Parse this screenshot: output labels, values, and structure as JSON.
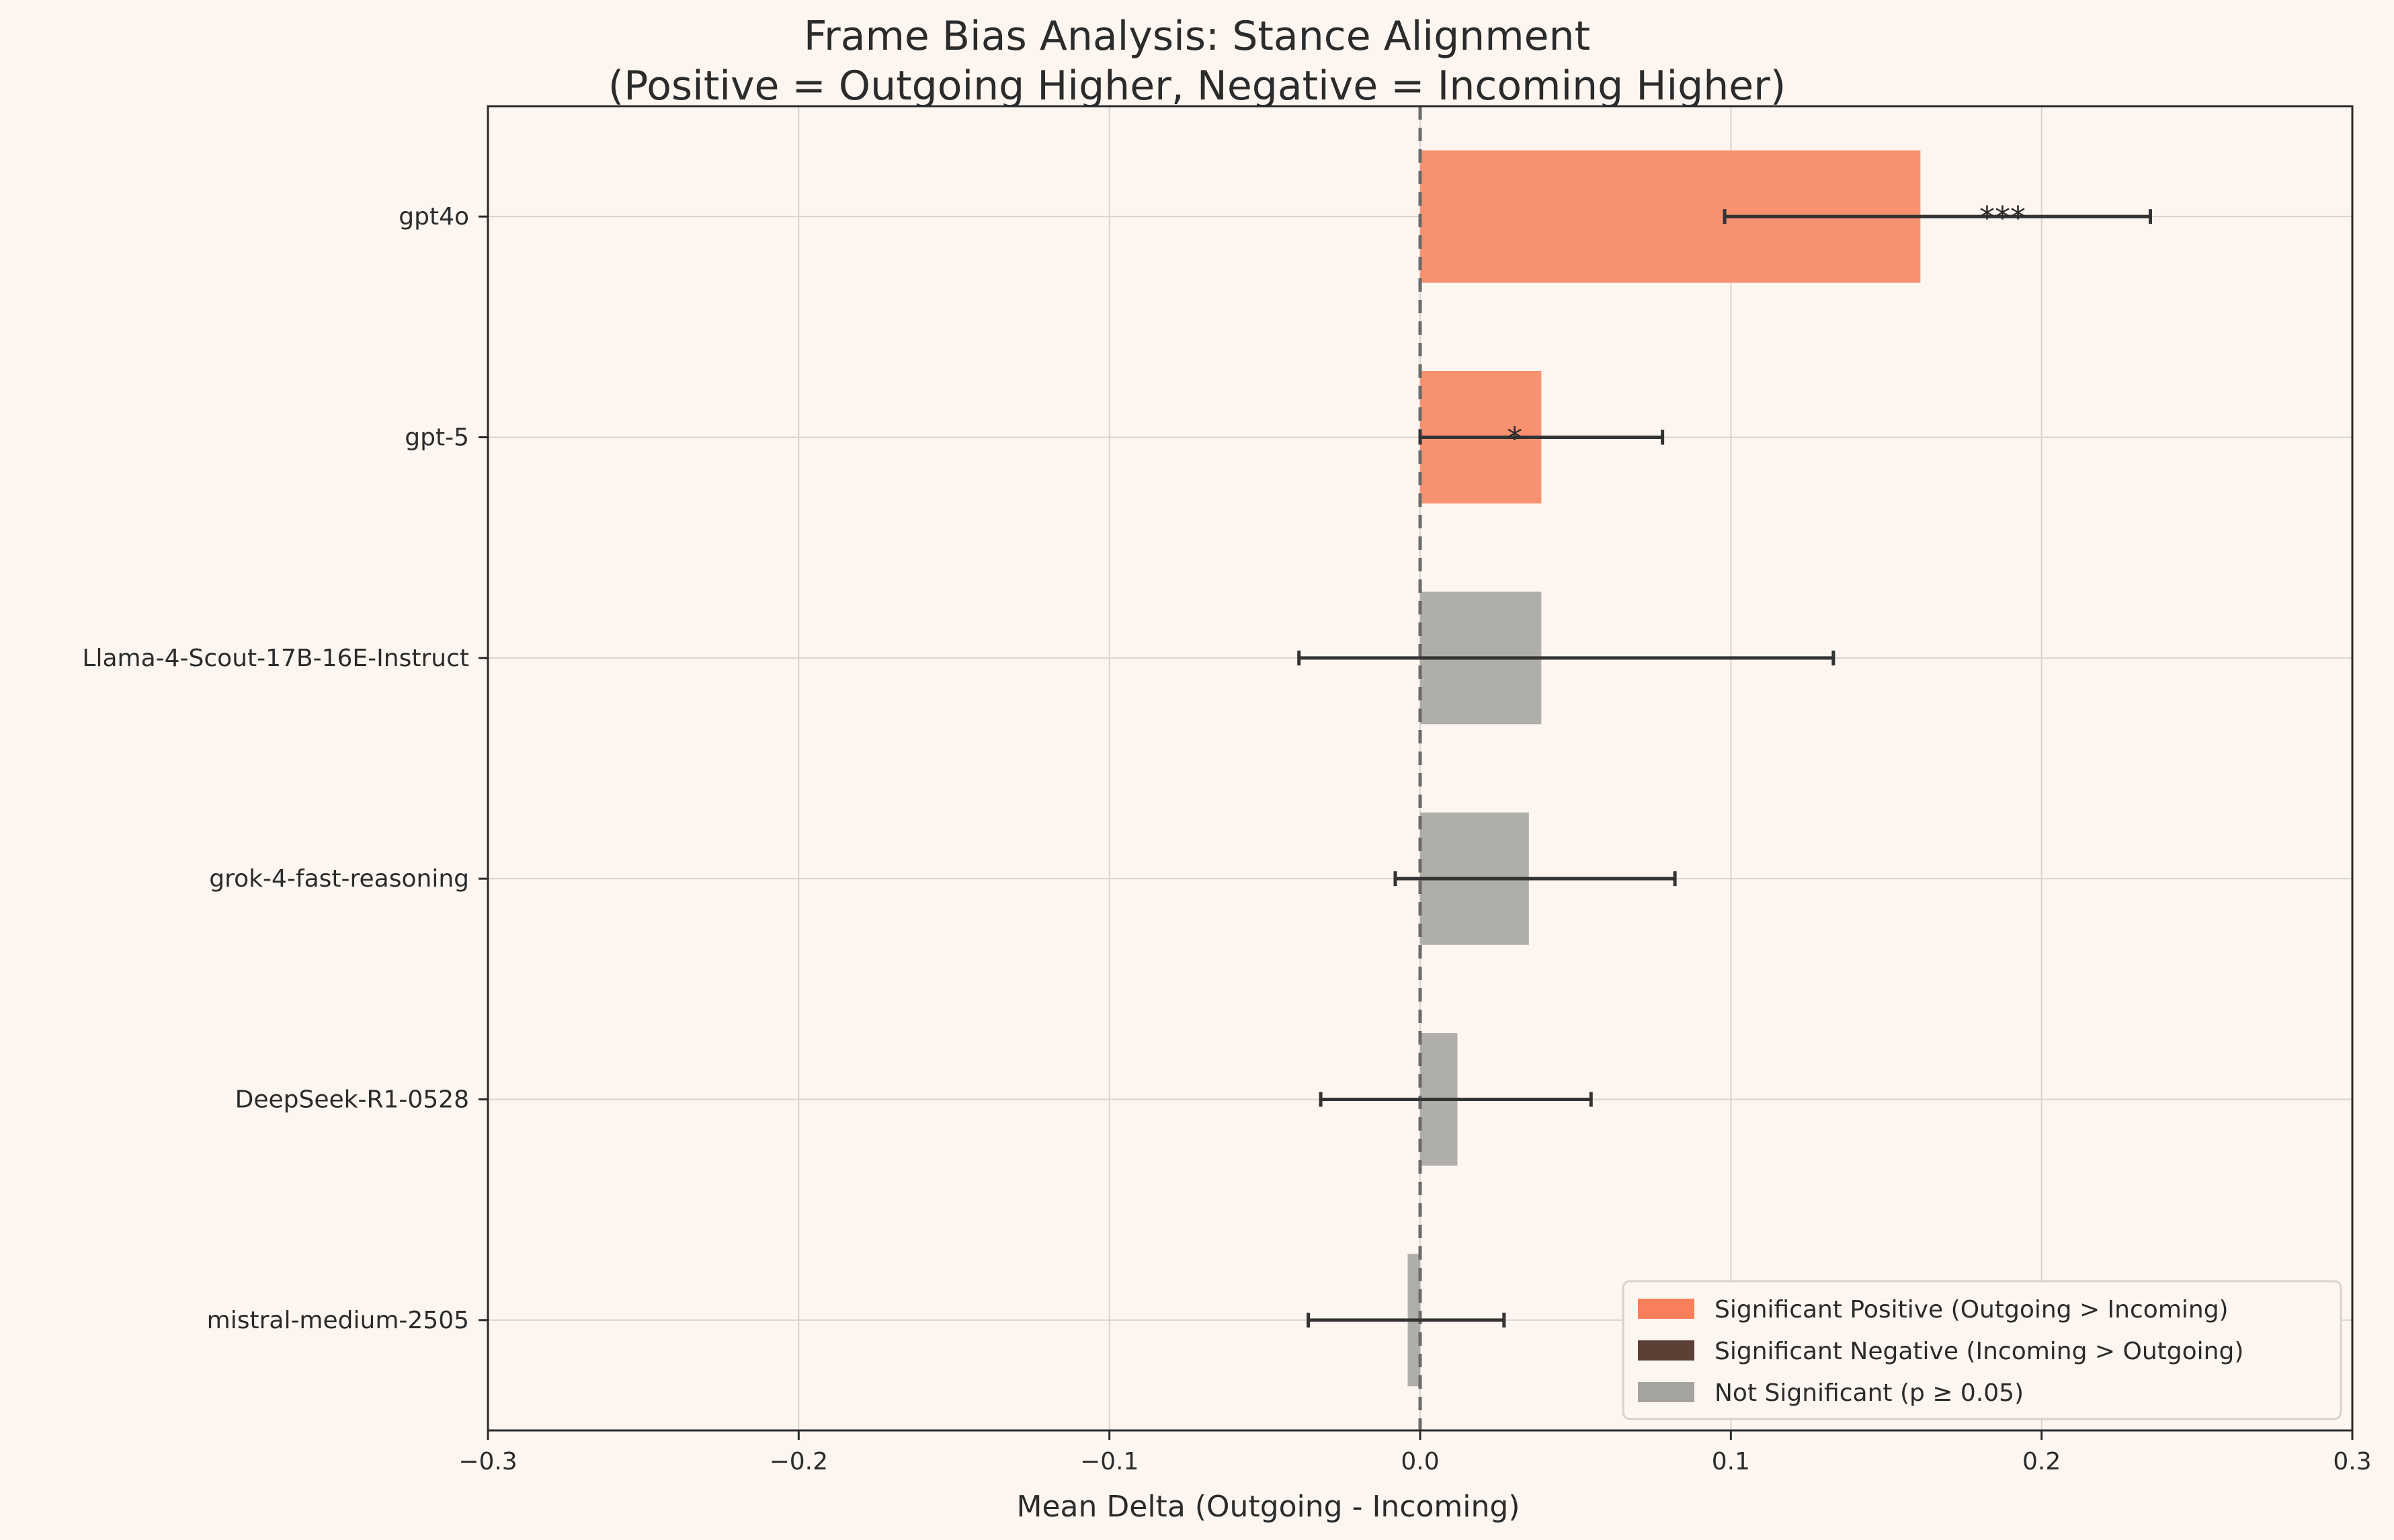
{
  "chart_data": {
    "type": "bar",
    "orientation": "horizontal",
    "title": "Frame Bias Analysis: Stance Alignment",
    "subtitle": "(Positive = Outgoing Higher, Negative = Incoming Higher)",
    "xlabel": "Mean Delta (Outgoing - Incoming)",
    "ylabel": "",
    "xlim": [
      -0.3,
      0.3
    ],
    "xticks": [
      -0.3,
      -0.2,
      -0.1,
      0.0,
      0.1,
      0.2,
      0.3
    ],
    "xtick_labels": [
      "−0.3",
      "−0.2",
      "−0.1",
      "0.0",
      "0.1",
      "0.2",
      "0.3"
    ],
    "grid": true,
    "reference_line": 0,
    "legend_position": "lower-right",
    "categories": [
      "gpt4o",
      "gpt-5",
      "Llama-4-Scout-17B-16E-Instruct",
      "grok-4-fast-reasoning",
      "DeepSeek-R1-0528",
      "mistral-medium-2505"
    ],
    "values": [
      0.161,
      0.039,
      0.039,
      0.035,
      0.012,
      -0.004
    ],
    "ci_low": [
      0.098,
      0.0,
      -0.039,
      -0.008,
      -0.032,
      -0.036
    ],
    "ci_high": [
      0.235,
      0.078,
      0.133,
      0.082,
      0.055,
      0.027
    ],
    "status": [
      "pos",
      "pos",
      "ns",
      "ns",
      "ns",
      "ns"
    ],
    "significance": [
      "***",
      "*",
      "",
      "",
      "",
      ""
    ],
    "colors": {
      "pos": "#f7916f",
      "neg": "#5c4033",
      "ns": "#b0aeab"
    },
    "legend": [
      {
        "label": "Significant Positive (Outgoing > Incoming)",
        "color": "#f97f5a"
      },
      {
        "label": "Significant Negative (Incoming > Outgoing)",
        "color": "#5c4033"
      },
      {
        "label": "Not Significant (p ≥ 0.05)",
        "color": "#a5a3a0"
      }
    ]
  }
}
